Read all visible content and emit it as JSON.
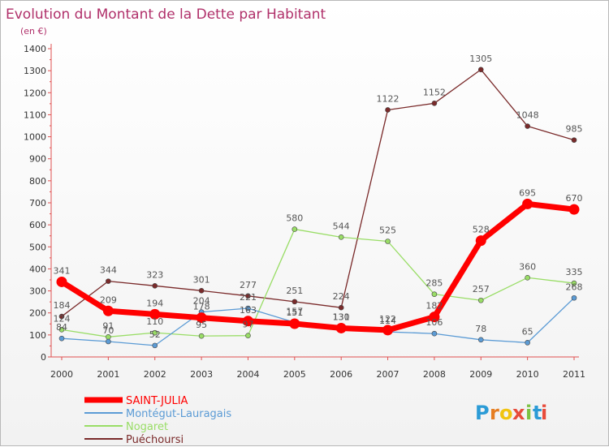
{
  "chart_data": {
    "type": "line",
    "title": "Evolution du Montant de la Dette par Habitant",
    "subtitle": "(en €)",
    "x": [
      "2000",
      "2001",
      "2002",
      "2003",
      "2004",
      "2005",
      "2006",
      "2007",
      "2008",
      "2009",
      "2010",
      "2011"
    ],
    "ylim": [
      0,
      1400
    ],
    "yticks": [
      0,
      100,
      200,
      300,
      400,
      500,
      600,
      700,
      800,
      900,
      1000,
      1100,
      1200,
      1300,
      1400
    ],
    "grid": false,
    "legend_position": "bottom-left",
    "series": [
      {
        "name": "SAINT-JULIA",
        "color": "#ff0000",
        "values": [
          341,
          209,
          194,
          178,
          163,
          151,
          131,
          122,
          182,
          528,
          695,
          670
        ],
        "labels": [
          "341",
          "209",
          "194",
          "178",
          "163",
          "151",
          "131",
          "122",
          "182",
          "528",
          "695",
          "670"
        ]
      },
      {
        "name": "Montégut-Lauragais",
        "color": "#5b9bd5",
        "values": [
          84,
          70,
          52,
          204,
          221,
          157,
          130,
          114,
          106,
          78,
          65,
          268
        ],
        "labels": [
          "84",
          "70",
          "52",
          "204",
          "221",
          "157",
          "130",
          "114",
          "106",
          "78",
          "65",
          "268"
        ]
      },
      {
        "name": "Nogaret",
        "color": "#99dd66",
        "values": [
          124,
          91,
          110,
          95,
          97,
          580,
          544,
          525,
          285,
          257,
          360,
          335
        ],
        "labels": [
          "124",
          "91",
          "110",
          "95",
          "97",
          "580",
          "544",
          "525",
          "285",
          "257",
          "360",
          "335"
        ]
      },
      {
        "name": "Puéchoursi",
        "color": "#7a2a2a",
        "values": [
          184,
          344,
          323,
          301,
          277,
          251,
          224,
          1122,
          1152,
          1305,
          1048,
          985
        ],
        "labels": [
          "184",
          "344",
          "323",
          "301",
          "277",
          "251",
          "224",
          "1122",
          "1152",
          "1305",
          "1048",
          "985"
        ]
      }
    ]
  },
  "logo": {
    "letters": [
      "P",
      "r",
      "o",
      "x",
      "i",
      "t",
      "i"
    ],
    "colors": [
      "#2b9bd6",
      "#e67e22",
      "#f1c40f",
      "#e74c3c",
      "#7cc243",
      "#2b9bd6",
      "#e74c3c"
    ]
  }
}
